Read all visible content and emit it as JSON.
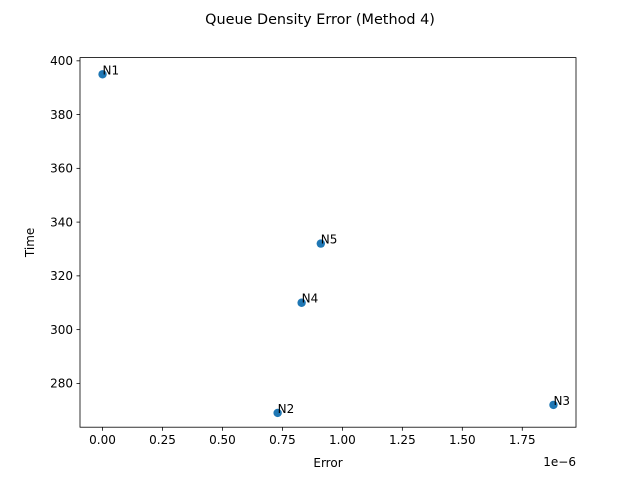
{
  "chart_data": {
    "type": "scatter",
    "title": "Queue Density Error (Method 4)",
    "xlabel": "Error",
    "ylabel": "Time",
    "x_offset_text": "1e−6",
    "xlim": [
      -9.4e-08,
      1.974e-06
    ],
    "ylim": [
      263.7,
      401.2
    ],
    "x_ticks": [
      0,
      2.5e-07,
      5e-07,
      7.5e-07,
      1e-06,
      1.25e-06,
      1.5e-06,
      1.75e-06
    ],
    "x_tick_labels": [
      "0.00",
      "0.25",
      "0.50",
      "0.75",
      "1.00",
      "1.25",
      "1.50",
      "1.75"
    ],
    "y_ticks": [
      280,
      300,
      320,
      340,
      360,
      380,
      400
    ],
    "y_tick_labels": [
      "280",
      "300",
      "320",
      "340",
      "360",
      "380",
      "400"
    ],
    "grid": false,
    "marker_color": "#1f77b4",
    "points": [
      {
        "label": "N1",
        "x": 0.0,
        "y": 395
      },
      {
        "label": "N2",
        "x": 7.3e-07,
        "y": 269
      },
      {
        "label": "N3",
        "x": 1.88e-06,
        "y": 272
      },
      {
        "label": "N4",
        "x": 8.3e-07,
        "y": 310
      },
      {
        "label": "N5",
        "x": 9.1e-07,
        "y": 332
      }
    ]
  }
}
